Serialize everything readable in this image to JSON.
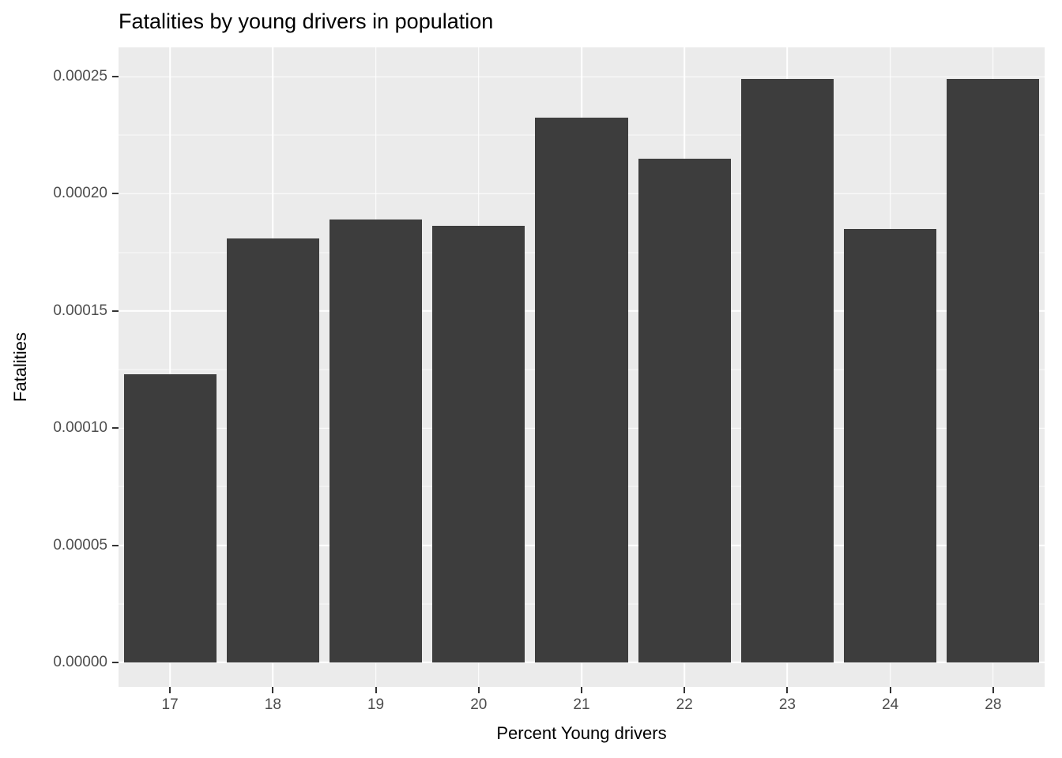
{
  "chart_data": {
    "type": "bar",
    "title": "Fatalities by young drivers in population",
    "xlabel": "Percent Young drivers",
    "ylabel": "Fatalities",
    "categories": [
      "17",
      "18",
      "19",
      "20",
      "21",
      "22",
      "23",
      "24",
      "28"
    ],
    "values": [
      0.000123,
      0.000181,
      0.000189,
      0.0001865,
      0.0002325,
      0.000215,
      0.000249,
      0.000185,
      0.000249
    ],
    "yticks": [
      0.0,
      5e-05,
      0.0001,
      0.00015,
      0.0002,
      0.00025
    ],
    "ytick_labels": [
      "0.00000",
      "0.00005",
      "0.00010",
      "0.00015",
      "0.00020",
      "0.00025"
    ],
    "yminor": [
      2.5e-05,
      7.5e-05,
      0.000125,
      0.000175,
      0.000225
    ],
    "ylim": [
      0,
      0.00025
    ],
    "panel_range": [
      -1.05e-05,
      0.0002625
    ],
    "bar_width_fraction": 0.9,
    "legend": "none",
    "grid": "on",
    "colors": {
      "bar": "#3D3D3D",
      "panel_background": "#EBEBEB",
      "grid_major": "#FFFFFF",
      "grid_minor": "#FFFFFF",
      "tick_text": "#4D4D4D",
      "title_text": "#000000",
      "tick_mark": "#333333"
    }
  }
}
